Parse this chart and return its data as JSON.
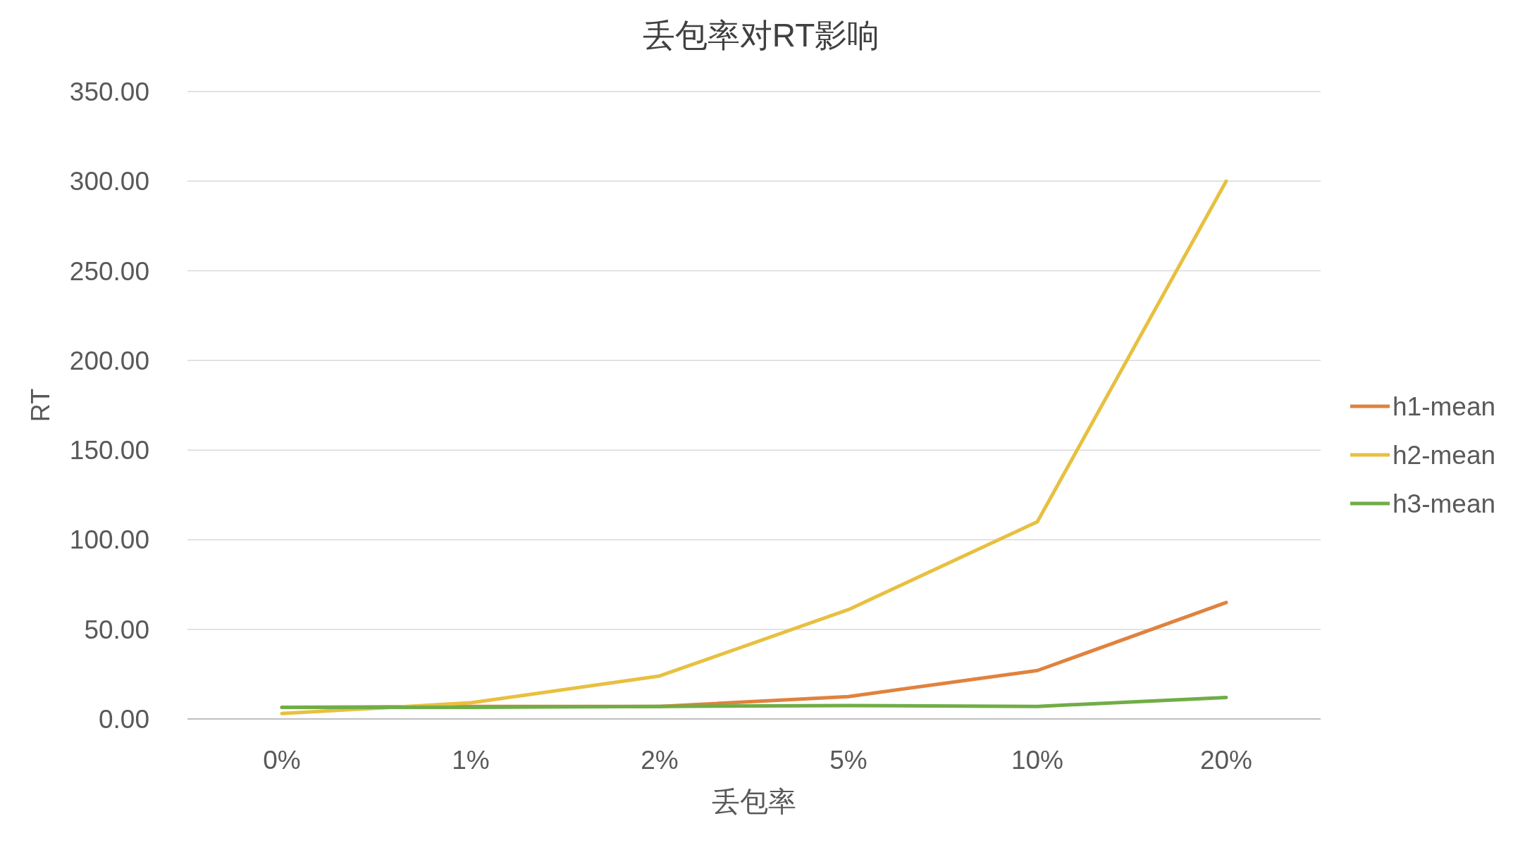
{
  "chart_data": {
    "type": "line",
    "title": "丢包率对RT影响",
    "xlabel": "丢包率",
    "ylabel": "RT",
    "categories": [
      "0%",
      "1%",
      "2%",
      "5%",
      "10%",
      "20%"
    ],
    "series": [
      {
        "name": "h1-mean",
        "color": "#e0823e",
        "values": [
          6.5,
          7,
          7,
          12.5,
          27,
          65
        ]
      },
      {
        "name": "h2-mean",
        "color": "#e8c040",
        "values": [
          3,
          9,
          24,
          61,
          110,
          300
        ]
      },
      {
        "name": "h3-mean",
        "color": "#70ad47",
        "values": [
          6.5,
          6.5,
          7,
          7.5,
          7,
          12
        ]
      }
    ],
    "ylim": [
      0,
      350
    ],
    "yticks": [
      {
        "value": 0,
        "label": "0.00"
      },
      {
        "value": 50,
        "label": "50.00"
      },
      {
        "value": 100,
        "label": "100.00"
      },
      {
        "value": 150,
        "label": "150.00"
      },
      {
        "value": 200,
        "label": "200.00"
      },
      {
        "value": 250,
        "label": "250.00"
      },
      {
        "value": 300,
        "label": "300.00"
      },
      {
        "value": 350,
        "label": "350.00"
      }
    ],
    "grid": "y",
    "legend": "right"
  }
}
